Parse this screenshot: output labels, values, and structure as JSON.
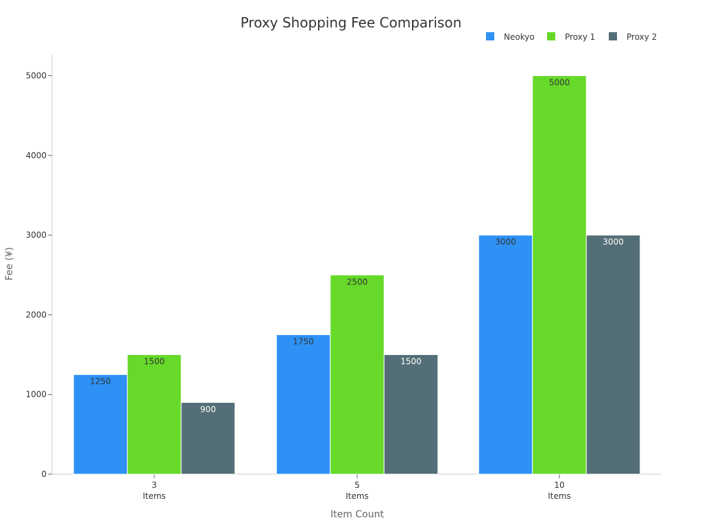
{
  "chart_data": {
    "type": "bar",
    "title": "Proxy Shopping Fee Comparison",
    "xlabel": "Item Count",
    "ylabel": "Fee (¥)",
    "categories": [
      "3\nItems",
      "5\nItems",
      "10\nItems"
    ],
    "series": [
      {
        "name": "Neokyo",
        "color": "#2e91f5",
        "label_color": "#333333",
        "values": [
          1250,
          1750,
          3000
        ]
      },
      {
        "name": "Proxy 1",
        "color": "#66d929",
        "label_color": "#333333",
        "values": [
          1500,
          2500,
          5000
        ]
      },
      {
        "name": "Proxy 2",
        "color": "#546e77",
        "label_color": "#ffffff",
        "values": [
          900,
          1500,
          3000
        ]
      }
    ],
    "ylim": [
      0,
      5250
    ],
    "yticks": [
      0,
      1000,
      2000,
      3000,
      4000,
      5000
    ],
    "legend_position": "top-right",
    "grid": false
  }
}
